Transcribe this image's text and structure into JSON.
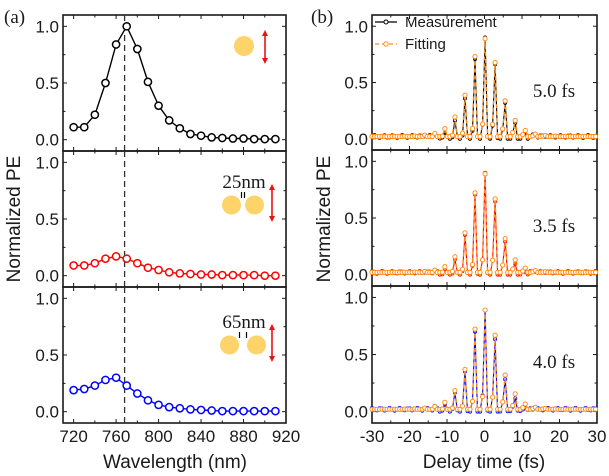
{
  "figure": {
    "left_tag": "(a)",
    "right_tag": "(b)"
  },
  "chart_data": [
    {
      "type": "line",
      "panel": "a",
      "xlabel": "Wavelength (nm)",
      "ylabel": "Normalized PE",
      "xlim": [
        710,
        920
      ],
      "ylim": [
        -0.1,
        1.1
      ],
      "xticks": [
        720,
        760,
        800,
        840,
        880,
        920
      ],
      "xtick_labels": [
        "720",
        "760",
        "800",
        "840",
        "880",
        "920"
      ],
      "yticks": [
        0.0,
        0.5,
        1.0
      ],
      "ytick_labels": [
        "0.0",
        "0.5",
        "1.0"
      ],
      "reference_line": {
        "x": 768,
        "style": "dashed",
        "color": "#333333"
      },
      "x": [
        720,
        730,
        740,
        750,
        760,
        770,
        780,
        790,
        800,
        810,
        820,
        830,
        840,
        850,
        860,
        870,
        880,
        890,
        900,
        910
      ],
      "subplots": [
        {
          "name": "single particle",
          "color": "#000000",
          "annotation": "",
          "icon": "single-sphere",
          "values": [
            0.11,
            0.11,
            0.22,
            0.5,
            0.84,
            1.0,
            0.8,
            0.51,
            0.3,
            0.17,
            0.1,
            0.05,
            0.035,
            0.02,
            0.015,
            0.01,
            0.01,
            0.005,
            0.005,
            0.005
          ]
        },
        {
          "name": "dimer 25nm gap",
          "color": "#ff0000",
          "annotation": "25nm",
          "icon": "dimer-spheres",
          "values": [
            0.09,
            0.09,
            0.11,
            0.15,
            0.17,
            0.15,
            0.11,
            0.07,
            0.05,
            0.03,
            0.02,
            0.015,
            0.01,
            0.01,
            0.005,
            0.005,
            0.005,
            0.005,
            0.0,
            0.0
          ]
        },
        {
          "name": "dimer 65nm gap",
          "color": "#0000ff",
          "annotation": "65nm",
          "icon": "dimer-spheres",
          "values": [
            0.19,
            0.2,
            0.23,
            0.28,
            0.3,
            0.23,
            0.16,
            0.1,
            0.06,
            0.04,
            0.03,
            0.02,
            0.015,
            0.01,
            0.005,
            0.005,
            0.005,
            0.005,
            0.005,
            0.005
          ]
        }
      ]
    },
    {
      "type": "line",
      "panel": "b",
      "xlabel": "Delay time (fs)",
      "ylabel": "Normalized PE",
      "xlim": [
        -30,
        30
      ],
      "ylim": [
        -0.1,
        1.1
      ],
      "xticks": [
        -30,
        -20,
        -10,
        0,
        10,
        20,
        30
      ],
      "xtick_labels": [
        "-30",
        "-20",
        "-10",
        "0",
        "10",
        "20",
        "30"
      ],
      "yticks": [
        0.0,
        0.5,
        1.0
      ],
      "ytick_labels": [
        "0.0",
        "0.5",
        "1.0"
      ],
      "legend": {
        "position": "top-left",
        "entries": [
          {
            "label": "Measurement",
            "style": "solid",
            "color": "#000000"
          },
          {
            "label": "Fitting",
            "style": "dashed",
            "color": "#ff8c1a"
          }
        ]
      },
      "optical_period_fs": 2.67,
      "step_fs": 0.67,
      "subplots": [
        {
          "annotation": "5.0 fs",
          "pulse_duration_fs": 5.0,
          "measurement_color": "#000000",
          "fitting_color": "#ff8c1a",
          "fringe_peaks": {
            "x": [
              -10.7,
              -8.0,
              -5.3,
              -2.7,
              0,
              2.7,
              5.3,
              8.0,
              10.7
            ],
            "y": [
              0.07,
              0.18,
              0.39,
              0.78,
              1.0,
              0.78,
              0.39,
              0.18,
              0.07
            ]
          }
        },
        {
          "annotation": "3.5 fs",
          "pulse_duration_fs": 3.5,
          "measurement_color": "#ff0000",
          "fitting_color": "#ff8c1a",
          "fringe_peaks": {
            "x": [
              -10.7,
              -8.0,
              -5.3,
              -2.7,
              0,
              2.7,
              5.3,
              8.0,
              10.7
            ],
            "y": [
              0.05,
              0.14,
              0.37,
              0.77,
              1.0,
              0.77,
              0.37,
              0.14,
              0.05
            ]
          }
        },
        {
          "annotation": "4.0 fs",
          "pulse_duration_fs": 4.0,
          "measurement_color": "#0000ff",
          "fitting_color": "#ff8c1a",
          "fringe_peaks": {
            "x": [
              -10.7,
              -8.0,
              -5.3,
              -2.7,
              0,
              2.7,
              5.3,
              8.0,
              10.7
            ],
            "y": [
              0.06,
              0.17,
              0.37,
              0.77,
              1.0,
              0.77,
              0.37,
              0.17,
              0.06
            ]
          }
        }
      ]
    }
  ]
}
